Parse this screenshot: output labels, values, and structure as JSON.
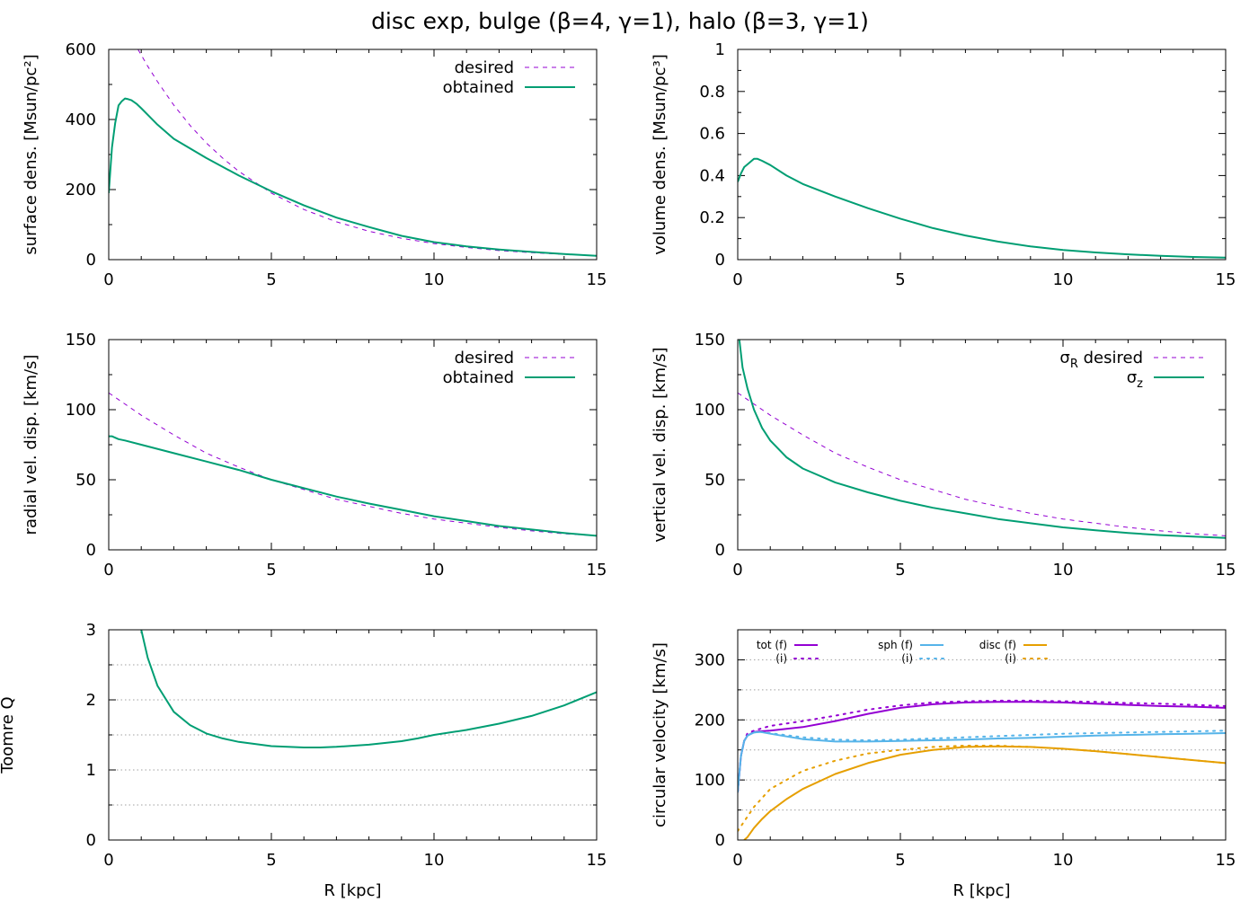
{
  "figure": {
    "title": "disc exp, bulge (β=4, γ=1), halo (β=3, γ=1)"
  },
  "chart_data": [
    {
      "id": "surface",
      "type": "line",
      "xlabel": "",
      "ylabel": "surface dens. [Msun/pc²]",
      "xlim": [
        0,
        15
      ],
      "ylim": [
        0,
        600
      ],
      "xticks": [
        0,
        5,
        10,
        15
      ],
      "yticks": [
        0,
        200,
        400,
        600
      ],
      "grid": false,
      "legend_position": "top-right",
      "series": [
        {
          "name": "desired",
          "style": "dashed",
          "color": "#9400d3",
          "x": [
            0.9,
            1.2,
            1.5,
            2,
            2.5,
            3,
            3.5,
            4,
            5,
            6,
            7,
            8,
            9,
            10,
            11,
            12,
            13,
            14,
            15
          ],
          "y": [
            600,
            552,
            508,
            441,
            383,
            333,
            290,
            252,
            190,
            143,
            108,
            81,
            61,
            46,
            35,
            26,
            20,
            15,
            11
          ]
        },
        {
          "name": "obtained",
          "style": "solid",
          "color": "#009e73",
          "x": [
            0,
            0.1,
            0.2,
            0.3,
            0.4,
            0.5,
            0.6,
            0.7,
            0.85,
            1.0,
            1.5,
            2,
            3,
            4,
            5,
            6,
            7,
            8,
            9,
            10,
            11,
            12,
            13,
            14,
            15
          ],
          "y": [
            190,
            320,
            390,
            440,
            452,
            460,
            458,
            455,
            445,
            432,
            385,
            345,
            290,
            240,
            195,
            155,
            120,
            93,
            68,
            50,
            38,
            29,
            22,
            16,
            11
          ]
        }
      ]
    },
    {
      "id": "volume",
      "type": "line",
      "xlabel": "",
      "ylabel": "volume dens. [Msun/pc³]",
      "xlim": [
        0,
        15
      ],
      "ylim": [
        0,
        1
      ],
      "xticks": [
        0,
        5,
        10,
        15
      ],
      "yticks": [
        0,
        0.2,
        0.4,
        0.6,
        0.8,
        1
      ],
      "grid": false,
      "series": [
        {
          "name": "",
          "style": "solid",
          "color": "#009e73",
          "x": [
            0,
            0.1,
            0.2,
            0.35,
            0.5,
            0.6,
            0.75,
            1,
            1.5,
            2,
            3,
            4,
            5,
            6,
            7,
            8,
            9,
            10,
            11,
            12,
            13,
            14,
            15
          ],
          "y": [
            0.37,
            0.41,
            0.44,
            0.46,
            0.48,
            0.48,
            0.47,
            0.45,
            0.4,
            0.36,
            0.3,
            0.245,
            0.195,
            0.15,
            0.115,
            0.086,
            0.063,
            0.046,
            0.034,
            0.025,
            0.018,
            0.013,
            0.01
          ]
        }
      ]
    },
    {
      "id": "radial",
      "type": "line",
      "xlabel": "",
      "ylabel": "radial vel. disp. [km/s]",
      "xlim": [
        0,
        15
      ],
      "ylim": [
        0,
        150
      ],
      "xticks": [
        0,
        5,
        10,
        15
      ],
      "yticks": [
        0,
        50,
        100,
        150
      ],
      "grid": false,
      "legend_position": "top-right",
      "series": [
        {
          "name": "desired",
          "style": "dashed",
          "color": "#9400d3",
          "x": [
            0,
            1,
            2,
            3,
            4,
            5,
            6,
            7,
            8,
            9,
            10,
            11,
            12,
            13,
            14,
            15
          ],
          "y": [
            112,
            96,
            82,
            69,
            59,
            50,
            43,
            36,
            31,
            26,
            22,
            19,
            16,
            13.5,
            11.5,
            10
          ]
        },
        {
          "name": "obtained",
          "style": "solid",
          "color": "#009e73",
          "x": [
            0,
            0.1,
            0.2,
            0.3,
            0.5,
            1,
            2,
            3,
            4,
            5,
            6,
            7,
            8,
            9,
            10,
            11,
            12,
            13,
            14,
            15
          ],
          "y": [
            81,
            81,
            80,
            79,
            78,
            75,
            69,
            63,
            57,
            50,
            44,
            38,
            33,
            28.5,
            24,
            20.5,
            17,
            14.5,
            12,
            10
          ]
        }
      ]
    },
    {
      "id": "vertical",
      "type": "line",
      "xlabel": "",
      "ylabel": "vertical vel. disp. [km/s]",
      "xlim": [
        0,
        15
      ],
      "ylim": [
        0,
        150
      ],
      "xticks": [
        0,
        5,
        10,
        15
      ],
      "yticks": [
        0,
        50,
        100,
        150
      ],
      "grid": false,
      "legend_position": "top-right",
      "legend_labels": [
        {
          "sym": "σ",
          "sub": "R",
          "rest": " desired"
        },
        {
          "sym": "σ",
          "sub": "z",
          "rest": ""
        }
      ],
      "series": [
        {
          "name": "σR desired",
          "style": "dashed",
          "color": "#9400d3",
          "x": [
            0,
            1,
            2,
            3,
            4,
            5,
            6,
            7,
            8,
            9,
            10,
            11,
            12,
            13,
            14,
            15
          ],
          "y": [
            112,
            96,
            82,
            69,
            59,
            50,
            43,
            36,
            31,
            26,
            22,
            19,
            16,
            13.5,
            11.5,
            10
          ]
        },
        {
          "name": "σz",
          "style": "solid",
          "color": "#009e73",
          "x": [
            0.05,
            0.15,
            0.3,
            0.5,
            0.75,
            1,
            1.5,
            2,
            3,
            4,
            5,
            6,
            7,
            8,
            9,
            10,
            11,
            12,
            13,
            14,
            15
          ],
          "y": [
            150,
            130,
            115,
            100,
            87,
            78,
            66,
            58,
            48,
            41,
            35,
            30,
            26,
            22,
            19,
            16,
            14,
            12,
            10.5,
            9.5,
            8.5
          ]
        }
      ]
    },
    {
      "id": "toomre",
      "type": "line",
      "xlabel": "R [kpc]",
      "ylabel": "Toomre Q",
      "xlim": [
        0,
        15
      ],
      "ylim": [
        0,
        3
      ],
      "xticks": [
        0,
        5,
        10,
        15
      ],
      "yticks": [
        0,
        1,
        2,
        3
      ],
      "grid": true,
      "grid_values": [
        0.5,
        1,
        1.5,
        2,
        2.5
      ],
      "series": [
        {
          "name": "",
          "style": "solid",
          "color": "#009e73",
          "x": [
            1.0,
            1.2,
            1.5,
            2,
            2.5,
            3,
            3.5,
            4,
            5,
            6,
            6.5,
            7,
            8,
            9,
            9.5,
            10,
            11,
            12,
            13,
            14,
            15
          ],
          "y": [
            3.0,
            2.6,
            2.2,
            1.83,
            1.64,
            1.52,
            1.45,
            1.4,
            1.34,
            1.32,
            1.32,
            1.33,
            1.36,
            1.41,
            1.45,
            1.5,
            1.57,
            1.66,
            1.77,
            1.92,
            2.11
          ]
        }
      ]
    },
    {
      "id": "circular",
      "type": "line",
      "xlabel": "R [kpc]",
      "ylabel": "circular velocity [km/s]",
      "xlim": [
        0,
        15
      ],
      "ylim": [
        0,
        350
      ],
      "xticks": [
        0,
        5,
        10,
        15
      ],
      "yticks": [
        0,
        100,
        200,
        300
      ],
      "grid": true,
      "grid_values": [
        50,
        100,
        150,
        200,
        250,
        300
      ],
      "legend_position": "top",
      "legend_groups": [
        {
          "label": "tot (f)",
          "sub": "(i)",
          "color": "#9400d3"
        },
        {
          "label": "sph (f)",
          "sub": "(i)",
          "color": "#56b4e9"
        },
        {
          "label": "disc (f)",
          "sub": "(i)",
          "color": "#e69f00"
        }
      ],
      "series": [
        {
          "name": "tot (i)",
          "style": "dotted",
          "color": "#9400d3",
          "x": [
            0,
            0.05,
            0.1,
            0.2,
            0.3,
            0.5,
            1,
            2,
            3,
            4,
            5,
            6,
            7,
            8,
            9,
            10,
            11,
            12,
            13,
            14,
            15
          ],
          "y": [
            80,
            110,
            140,
            165,
            178,
            182,
            190,
            198,
            207,
            217,
            224,
            229,
            231,
            232,
            232,
            231,
            230,
            228,
            227,
            225,
            223
          ]
        },
        {
          "name": "tot (f)",
          "style": "solid",
          "color": "#9400d3",
          "x": [
            0,
            0.05,
            0.1,
            0.2,
            0.3,
            0.5,
            0.7,
            1,
            2,
            3,
            4,
            5,
            6,
            7,
            8,
            9,
            10,
            11,
            12,
            13,
            14,
            15
          ],
          "y": [
            80,
            110,
            140,
            165,
            174,
            180,
            181,
            182,
            188,
            198,
            210,
            220,
            226,
            229,
            230,
            230,
            229,
            227,
            225,
            223,
            222,
            220
          ]
        },
        {
          "name": "sph (i)",
          "style": "dotted",
          "color": "#56b4e9",
          "x": [
            0,
            0.05,
            0.1,
            0.2,
            0.3,
            0.5,
            0.7,
            1,
            2,
            3,
            4,
            5,
            6,
            7,
            8,
            9,
            10,
            11,
            12,
            13,
            14,
            15
          ],
          "y": [
            80,
            110,
            140,
            165,
            174,
            179,
            180,
            178,
            171,
            167,
            166,
            167,
            169,
            171,
            173,
            175,
            177,
            178,
            179,
            180,
            181,
            182
          ]
        },
        {
          "name": "sph (f)",
          "style": "solid",
          "color": "#56b4e9",
          "x": [
            0,
            0.05,
            0.1,
            0.2,
            0.3,
            0.5,
            0.7,
            1,
            2,
            3,
            4,
            5,
            6,
            7,
            8,
            9,
            10,
            11,
            12,
            13,
            14,
            15
          ],
          "y": [
            80,
            110,
            140,
            165,
            174,
            179,
            180,
            177,
            168,
            164,
            164,
            165,
            166,
            167,
            169,
            170,
            172,
            174,
            175,
            176,
            177,
            178
          ]
        },
        {
          "name": "disc (i)",
          "style": "dotted",
          "color": "#e69f00",
          "x": [
            0,
            0.5,
            1,
            2,
            3,
            4,
            5,
            6,
            7,
            8,
            9,
            10,
            11,
            12,
            13,
            14,
            15
          ],
          "y": [
            15,
            55,
            85,
            115,
            132,
            144,
            150,
            155,
            157,
            157,
            155,
            152,
            148,
            143,
            138,
            133,
            128
          ]
        },
        {
          "name": "disc (f)",
          "style": "solid",
          "color": "#e69f00",
          "x": [
            0.2,
            0.3,
            0.5,
            0.75,
            1,
            1.5,
            2,
            3,
            4,
            5,
            6,
            7,
            8,
            9,
            10,
            11,
            12,
            13,
            14,
            15
          ],
          "y": [
            0,
            5,
            20,
            35,
            48,
            68,
            85,
            110,
            128,
            142,
            150,
            155,
            156,
            155,
            152,
            148,
            143,
            138,
            133,
            128
          ]
        }
      ]
    }
  ]
}
